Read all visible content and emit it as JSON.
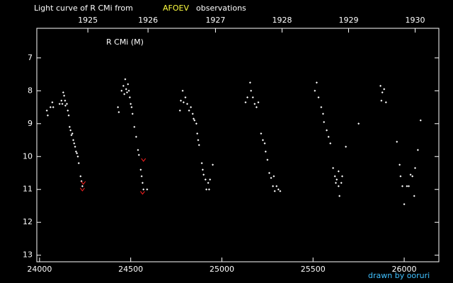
{
  "chart_data": {
    "type": "scatter",
    "title": "Light curve of R CMi from",
    "title_highlight": "AFOEV",
    "title_end": "observations",
    "label": "R CMi (M)",
    "credit": "drawn by ooruri",
    "xlim": [
      23985,
      26190
    ],
    "ylim": [
      13.2,
      6.1
    ],
    "xticks": [
      24000,
      24500,
      25000,
      25500,
      26000
    ],
    "yticks": [
      7,
      8,
      9,
      10,
      11,
      12,
      13
    ],
    "x2ticks": [
      {
        "value": 24265,
        "label": "1925"
      },
      {
        "value": 24595,
        "label": "1926"
      },
      {
        "value": 24965,
        "label": "1927"
      },
      {
        "value": 25330,
        "label": "1928"
      },
      {
        "value": 25695,
        "label": "1929"
      },
      {
        "value": 26060,
        "label": "1930"
      }
    ],
    "series": [
      {
        "color": "#ffffff",
        "marker": "point",
        "x": [
          24040,
          24045,
          24060,
          24070,
          24075,
          24110,
          24120,
          24125,
          24130,
          24135,
          24140,
          24142,
          24150,
          24155,
          24160,
          24165,
          24170,
          24175,
          24180,
          24185,
          24190,
          24195,
          24200,
          24205,
          24210,
          24215,
          24225,
          24230,
          24235,
          24430,
          24435,
          24450,
          24460,
          24465,
          24470,
          24475,
          24480,
          24485,
          24490,
          24495,
          24500,
          24505,
          24510,
          24520,
          24530,
          24540,
          24545,
          24555,
          24560,
          24565,
          24570,
          24590,
          24770,
          24775,
          24785,
          24790,
          24800,
          24810,
          24820,
          24830,
          24840,
          24845,
          24850,
          24860,
          24865,
          24870,
          24875,
          24890,
          24895,
          24900,
          24910,
          24915,
          24925,
          24935,
          24950,
          24930,
          25130,
          25140,
          25155,
          25160,
          25170,
          25180,
          25190,
          25200,
          25215,
          25225,
          25235,
          25240,
          25250,
          25260,
          25270,
          25280,
          25290,
          25300,
          25310,
          25320,
          25285,
          25510,
          25520,
          25530,
          25545,
          25555,
          25560,
          25575,
          25585,
          25595,
          25610,
          25620,
          25630,
          25640,
          25645,
          25655,
          25660,
          25680,
          25640,
          25625,
          25750,
          25870,
          25875,
          25880,
          25890,
          25900,
          25960,
          25975,
          25980,
          25990,
          26000,
          26015,
          26025,
          26035,
          26045,
          26055,
          26060,
          26075,
          26090
        ],
        "y": [
          8.6,
          8.75,
          8.5,
          8.35,
          8.5,
          8.4,
          8.3,
          8.4,
          8.05,
          8.15,
          8.3,
          8.45,
          8.4,
          8.6,
          8.75,
          9.1,
          9.2,
          9.35,
          9.3,
          9.5,
          9.6,
          9.7,
          9.85,
          9.9,
          10.0,
          10.2,
          10.6,
          10.75,
          10.9,
          8.5,
          8.65,
          8.0,
          7.85,
          8.1,
          7.65,
          7.95,
          8.05,
          7.8,
          8.0,
          8.2,
          8.4,
          8.5,
          8.7,
          9.1,
          9.4,
          9.8,
          9.95,
          10.4,
          10.6,
          10.8,
          11.0,
          11.0,
          8.6,
          8.3,
          8.0,
          8.35,
          8.2,
          8.4,
          8.6,
          8.5,
          8.7,
          8.85,
          8.9,
          9.0,
          9.3,
          9.5,
          9.65,
          10.2,
          10.4,
          10.55,
          10.7,
          11.0,
          10.8,
          10.7,
          10.25,
          11.0,
          8.35,
          8.2,
          7.75,
          8.0,
          8.2,
          8.4,
          8.5,
          8.35,
          9.3,
          9.5,
          9.6,
          9.85,
          10.1,
          10.5,
          10.65,
          10.9,
          11.05,
          10.9,
          11.0,
          11.05,
          10.6,
          8.0,
          7.75,
          8.2,
          8.5,
          8.7,
          8.95,
          9.2,
          9.4,
          9.6,
          10.35,
          10.6,
          10.7,
          10.9,
          11.2,
          10.8,
          10.6,
          9.7,
          10.45,
          10.8,
          9.0,
          7.85,
          8.3,
          8.05,
          7.95,
          8.35,
          9.55,
          10.25,
          10.6,
          10.9,
          11.45,
          10.9,
          10.9,
          10.55,
          10.6,
          11.2,
          10.35,
          9.8,
          8.9
        ]
      },
      {
        "color": "#ff2020",
        "marker": "limit",
        "x": [
          24240,
          24235,
          24570,
          24565
        ],
        "y": [
          10.8,
          11.0,
          10.1,
          11.1
        ]
      }
    ]
  }
}
